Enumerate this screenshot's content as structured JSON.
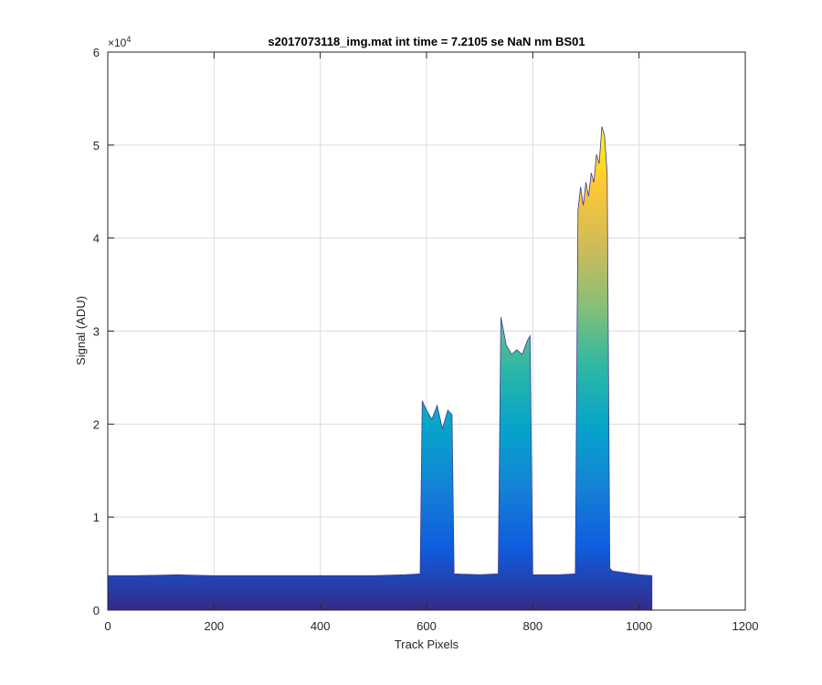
{
  "chart_data": {
    "type": "area",
    "title": "s2017073118_img.mat int time = 7.2105 se  NaN nm BS01",
    "xlabel": "Track Pixels",
    "ylabel": "Signal (ADU)",
    "xlim": [
      0,
      1200
    ],
    "ylim": [
      0,
      60000
    ],
    "x_ticks": [
      0,
      200,
      400,
      600,
      800,
      1000,
      1200
    ],
    "x_tick_labels": [
      "0",
      "200",
      "400",
      "600",
      "800",
      "1000",
      "1200"
    ],
    "y_ticks": [
      0,
      10000,
      20000,
      30000,
      40000,
      50000,
      60000
    ],
    "y_tick_labels": [
      "0",
      "1",
      "2",
      "3",
      "4",
      "5",
      "6"
    ],
    "y_exponent_base": "×10",
    "y_exponent_power": "4",
    "grid": true,
    "colormap": [
      "#352a87",
      "#0f5cdd",
      "#1481d6",
      "#06a4ca",
      "#2eb7a4",
      "#87bf77",
      "#d1bb59",
      "#fec832",
      "#f9fb0e"
    ],
    "series": [
      {
        "x": [
          0,
          50,
          100,
          130,
          160,
          200,
          300,
          400,
          500,
          560,
          588,
          592,
          600,
          610,
          620,
          630,
          640,
          648,
          652,
          700,
          735,
          740,
          750,
          760,
          770,
          780,
          790,
          795,
          800,
          850,
          880,
          885,
          890,
          895,
          900,
          905,
          910,
          915,
          920,
          925,
          930,
          935,
          940,
          945,
          950,
          1000,
          1025
        ],
        "y": [
          3700,
          3700,
          3750,
          3800,
          3750,
          3700,
          3700,
          3700,
          3700,
          3800,
          3900,
          22500,
          21500,
          20500,
          22000,
          19500,
          21500,
          21000,
          3900,
          3800,
          3900,
          31500,
          28500,
          27500,
          28000,
          27500,
          29000,
          29500,
          3800,
          3800,
          3900,
          43000,
          45500,
          43500,
          46000,
          44500,
          47000,
          46000,
          49000,
          48000,
          52000,
          51000,
          47000,
          4500,
          4200,
          3800,
          3700
        ]
      }
    ]
  }
}
